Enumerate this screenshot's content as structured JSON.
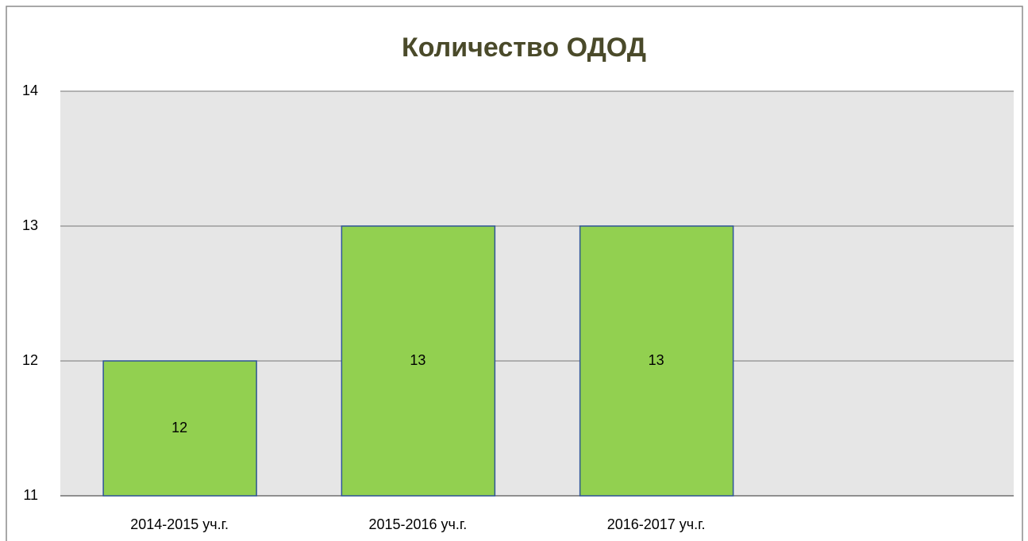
{
  "chart_data": {
    "type": "bar",
    "title": "Количество ОДОД",
    "categories": [
      "2014-2015 уч.г.",
      "2015-2016 уч.г.",
      "2016-2017 уч.г.",
      null
    ],
    "values": [
      12,
      13,
      13,
      null
    ],
    "color": "#92d050",
    "ylim": [
      11,
      14
    ],
    "yticks": [
      11,
      12,
      13,
      14
    ],
    "grid": true
  }
}
